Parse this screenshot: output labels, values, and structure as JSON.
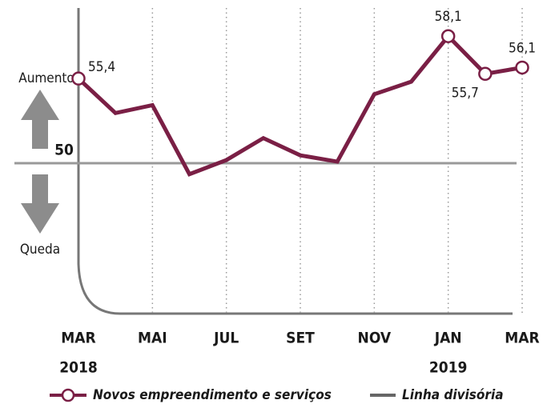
{
  "chart_data": {
    "type": "line",
    "categories": [
      "MAR",
      null,
      "MAI",
      null,
      "JUL",
      null,
      "SET",
      null,
      "NOV",
      null,
      "JAN",
      null,
      "MAR"
    ],
    "x_sublabels": [
      "2018",
      null,
      null,
      null,
      null,
      null,
      null,
      null,
      null,
      null,
      "2019",
      null,
      null
    ],
    "series": [
      {
        "name": "Novos empreendimento e serviços",
        "color": "#7a1f45",
        "values": [
          55.4,
          53.2,
          53.7,
          49.3,
          50.2,
          51.6,
          50.5,
          50.1,
          54.4,
          55.2,
          58.1,
          55.7,
          56.1
        ],
        "value_labels": [
          "55,4",
          null,
          null,
          null,
          null,
          null,
          null,
          null,
          null,
          null,
          "58,1",
          "55,7",
          "56,1"
        ]
      }
    ],
    "reference_line": {
      "name": "Linha divisória",
      "value": 50,
      "color": "#999999"
    },
    "annotations": [
      "Aumento",
      "Queda"
    ],
    "ylim": [
      45,
      60
    ],
    "grid": true
  }
}
